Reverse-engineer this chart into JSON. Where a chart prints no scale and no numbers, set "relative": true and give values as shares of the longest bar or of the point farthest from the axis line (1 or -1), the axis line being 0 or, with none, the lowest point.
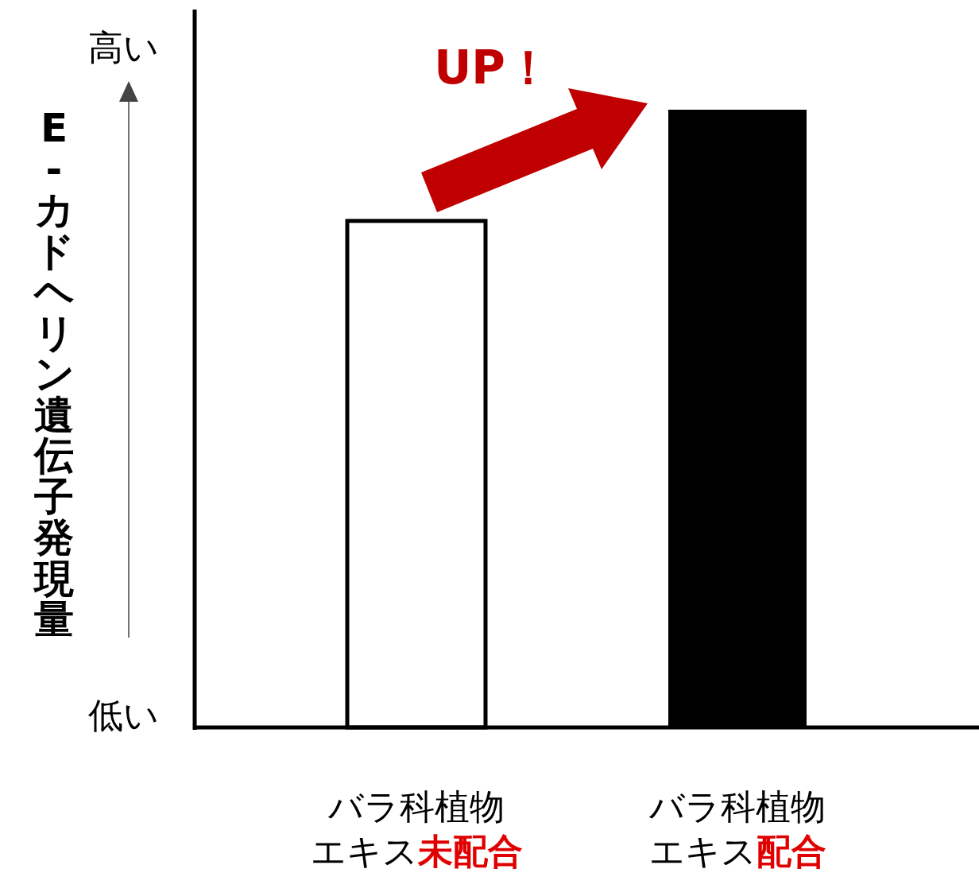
{
  "chart_data": {
    "type": "bar",
    "relative": true,
    "ylabel": "E-カドヘリン遺伝子発現量",
    "categories": [
      "バラ科植物エキス未配合",
      "バラ科植物エキス配合"
    ],
    "values": [
      0.82,
      1
    ],
    "colors": [
      "#ffffff",
      "#000000"
    ],
    "annotations": [
      "UP！",
      "高い",
      "低い"
    ]
  }
}
